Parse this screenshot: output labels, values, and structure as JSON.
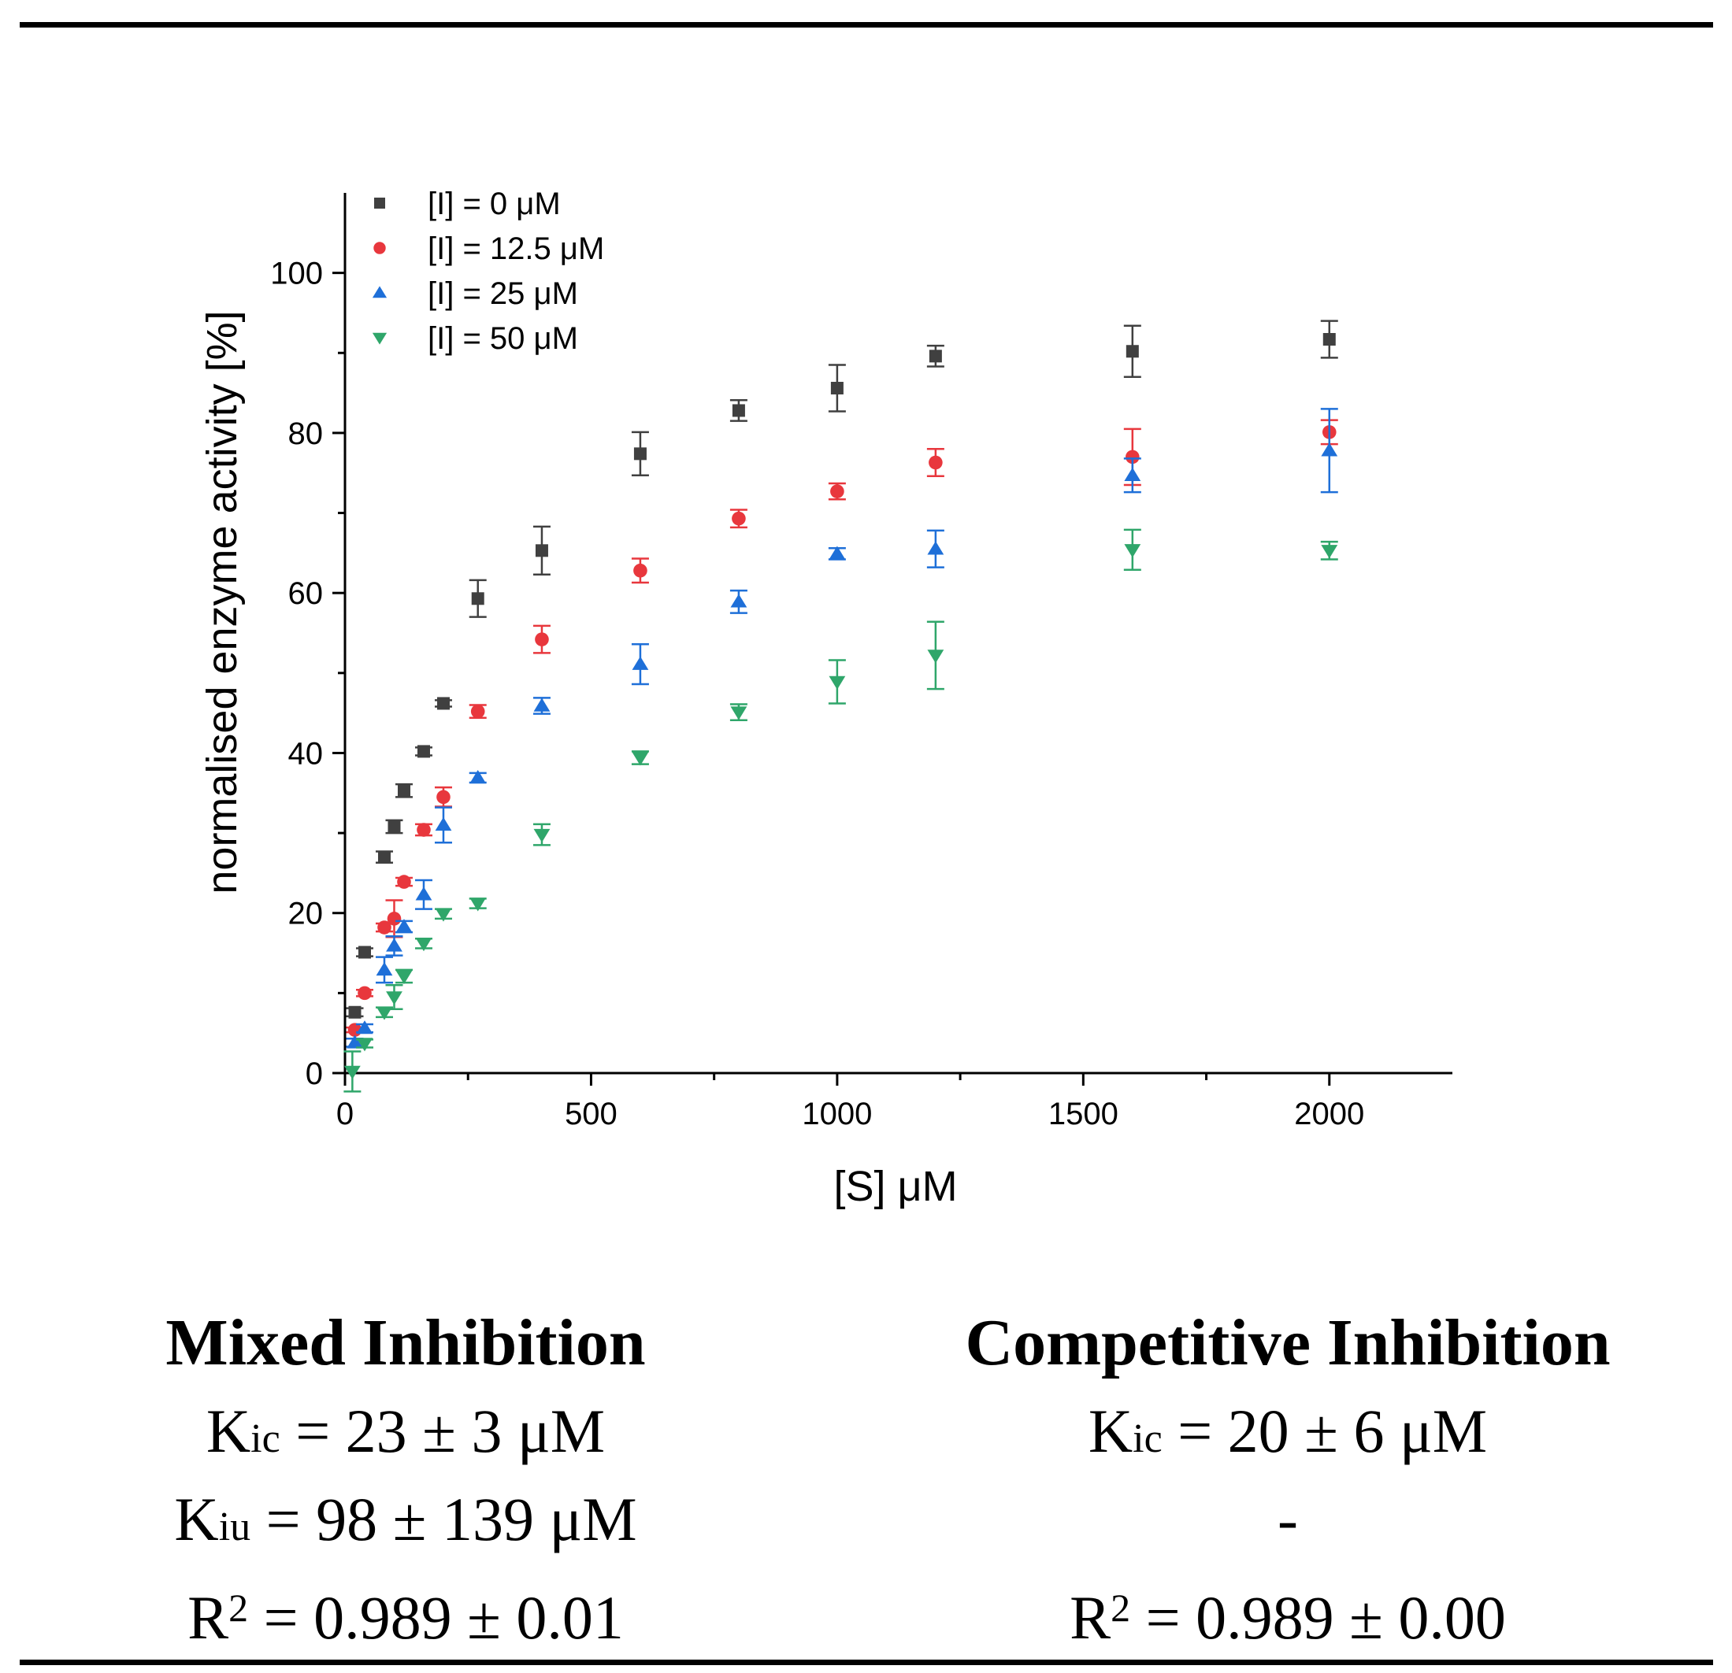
{
  "chart_data": {
    "type": "scatter",
    "xlabel": "[S] μM",
    "ylabel": "normalised enzyme activity [%]",
    "xlim": [
      0,
      2250
    ],
    "ylim": [
      0,
      110
    ],
    "xticks": [
      0,
      500,
      1000,
      1500,
      2000
    ],
    "yticks": [
      0,
      20,
      40,
      60,
      80,
      100
    ],
    "legend_position": "top-left",
    "series": [
      {
        "name": "[I] = 0 μM",
        "marker": "square",
        "color": "#404040",
        "points": [
          {
            "x": 20,
            "y": 7.6,
            "err": 0.5
          },
          {
            "x": 40,
            "y": 15.1,
            "err": 0.5
          },
          {
            "x": 80,
            "y": 27.0,
            "err": 0.7
          },
          {
            "x": 100,
            "y": 30.8,
            "err": 0.8
          },
          {
            "x": 120,
            "y": 35.3,
            "err": 0.8
          },
          {
            "x": 160,
            "y": 40.2,
            "err": 0.5
          },
          {
            "x": 200,
            "y": 46.2,
            "err": 0.4
          },
          {
            "x": 270,
            "y": 59.3,
            "err": 2.3
          },
          {
            "x": 400,
            "y": 65.3,
            "err": 3.0
          },
          {
            "x": 600,
            "y": 77.4,
            "err": 2.7
          },
          {
            "x": 800,
            "y": 82.8,
            "err": 1.3
          },
          {
            "x": 1000,
            "y": 85.6,
            "err": 2.9
          },
          {
            "x": 1200,
            "y": 89.6,
            "err": 1.3
          },
          {
            "x": 1600,
            "y": 90.2,
            "err": 3.2
          },
          {
            "x": 2000,
            "y": 91.7,
            "err": 2.3
          }
        ]
      },
      {
        "name": "[I] = 12.5 μM",
        "marker": "circle",
        "color": "#e8373d",
        "points": [
          {
            "x": 20,
            "y": 5.4,
            "err": 0.3
          },
          {
            "x": 40,
            "y": 10.0,
            "err": 0.4
          },
          {
            "x": 80,
            "y": 18.2,
            "err": 0.5
          },
          {
            "x": 100,
            "y": 19.3,
            "err": 2.3
          },
          {
            "x": 120,
            "y": 23.9,
            "err": 0.5
          },
          {
            "x": 160,
            "y": 30.4,
            "err": 0.7
          },
          {
            "x": 200,
            "y": 34.5,
            "err": 1.2
          },
          {
            "x": 270,
            "y": 45.2,
            "err": 0.8
          },
          {
            "x": 400,
            "y": 54.2,
            "err": 1.7
          },
          {
            "x": 600,
            "y": 62.8,
            "err": 1.5
          },
          {
            "x": 800,
            "y": 69.3,
            "err": 1.1
          },
          {
            "x": 1000,
            "y": 72.7,
            "err": 1.0
          },
          {
            "x": 1200,
            "y": 76.3,
            "err": 1.7
          },
          {
            "x": 1600,
            "y": 77.0,
            "err": 3.5
          },
          {
            "x": 2000,
            "y": 80.1,
            "err": 1.5
          }
        ]
      },
      {
        "name": "[I] = 25 μM",
        "marker": "triangle-up",
        "color": "#1e6fd8",
        "points": [
          {
            "x": 20,
            "y": 3.8,
            "err": 0.5
          },
          {
            "x": 40,
            "y": 5.6,
            "err": 0.5
          },
          {
            "x": 80,
            "y": 12.9,
            "err": 1.6
          },
          {
            "x": 100,
            "y": 15.9,
            "err": 1.2
          },
          {
            "x": 120,
            "y": 18.3,
            "err": 0.7
          },
          {
            "x": 160,
            "y": 22.3,
            "err": 1.8
          },
          {
            "x": 200,
            "y": 31.0,
            "err": 2.2
          },
          {
            "x": 270,
            "y": 36.9,
            "err": 0.6
          },
          {
            "x": 400,
            "y": 45.9,
            "err": 1.0
          },
          {
            "x": 600,
            "y": 51.1,
            "err": 2.5
          },
          {
            "x": 800,
            "y": 58.9,
            "err": 1.4
          },
          {
            "x": 1000,
            "y": 64.9,
            "err": 0.7
          },
          {
            "x": 1200,
            "y": 65.5,
            "err": 2.3
          },
          {
            "x": 1600,
            "y": 74.7,
            "err": 2.1
          },
          {
            "x": 2000,
            "y": 77.8,
            "err": 5.2
          }
        ]
      },
      {
        "name": "[I] = 50 μM",
        "marker": "triangle-down",
        "color": "#2fa66a",
        "points": [
          {
            "x": 15,
            "y": 0.2,
            "err": 2.5
          },
          {
            "x": 40,
            "y": 3.7,
            "err": 0.5
          },
          {
            "x": 80,
            "y": 7.6,
            "err": 0.6
          },
          {
            "x": 100,
            "y": 9.5,
            "err": 1.5
          },
          {
            "x": 120,
            "y": 12.1,
            "err": 0.8
          },
          {
            "x": 160,
            "y": 16.2,
            "err": 0.6
          },
          {
            "x": 200,
            "y": 19.9,
            "err": 0.6
          },
          {
            "x": 270,
            "y": 21.2,
            "err": 0.6
          },
          {
            "x": 400,
            "y": 29.8,
            "err": 1.3
          },
          {
            "x": 600,
            "y": 39.4,
            "err": 0.8
          },
          {
            "x": 800,
            "y": 45.1,
            "err": 1.0
          },
          {
            "x": 1000,
            "y": 48.9,
            "err": 2.7
          },
          {
            "x": 1200,
            "y": 52.2,
            "err": 4.2
          },
          {
            "x": 1600,
            "y": 65.4,
            "err": 2.5
          },
          {
            "x": 2000,
            "y": 65.3,
            "err": 1.1
          }
        ]
      }
    ]
  },
  "results": {
    "mixed": {
      "title": "Mixed Inhibition",
      "kic_base": "K",
      "kic_sub": "ic",
      "kic_value": " = 23 ± 3 μM",
      "kiu_base": "K",
      "kiu_sub": "iu",
      "kiu_value": " = 98 ± 139 μM",
      "r2_base": "R",
      "r2_sup": "2",
      "r2_value": " = 0.989 ± 0.01"
    },
    "competitive": {
      "title": "Competitive Inhibition",
      "kic_base": "K",
      "kic_sub": "ic",
      "kic_value": " = 20 ± 6 μM",
      "kiu_text": "-",
      "r2_base": "R",
      "r2_sup": "2",
      "r2_value": " = 0.989 ± 0.00"
    }
  }
}
